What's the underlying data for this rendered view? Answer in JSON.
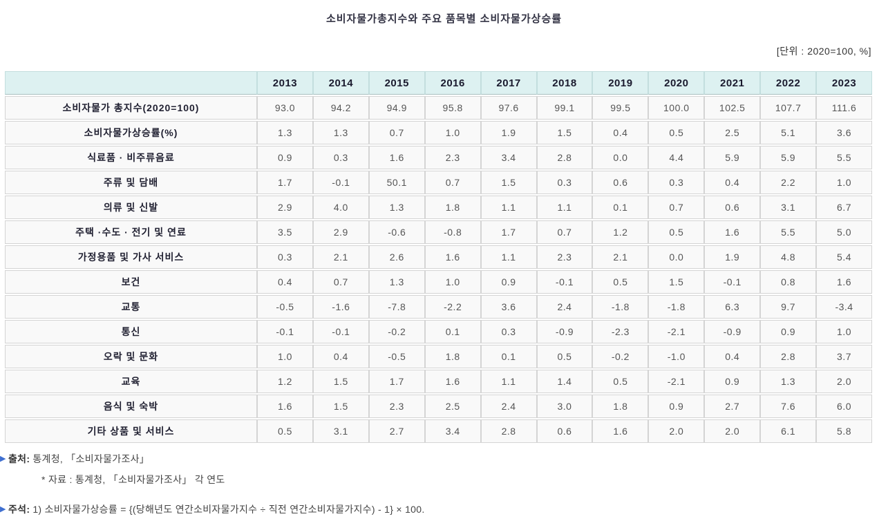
{
  "title": "소비자물가총지수와 주요 품목별 소비자물가상승률",
  "unit_label": "[단위 : 2020=100, %]",
  "icons": {
    "bullet_icon": "▶"
  },
  "colors": {
    "header_bg": "#ddf1f1",
    "row_bg": "#f9f9f9",
    "cell_border": "#d4d4d4",
    "header_border": "#c3dede",
    "bullet_blue": "#3f6fd0"
  },
  "table": {
    "year_columns": [
      "2013",
      "2014",
      "2015",
      "2016",
      "2017",
      "2018",
      "2019",
      "2020",
      "2021",
      "2022",
      "2023"
    ],
    "rows": [
      {
        "label": "소비자물가 총지수(2020=100)",
        "values": [
          "93.0",
          "94.2",
          "94.9",
          "95.8",
          "97.6",
          "99.1",
          "99.5",
          "100.0",
          "102.5",
          "107.7",
          "111.6"
        ]
      },
      {
        "label": "소비자물가상승률(%)",
        "values": [
          "1.3",
          "1.3",
          "0.7",
          "1.0",
          "1.9",
          "1.5",
          "0.4",
          "0.5",
          "2.5",
          "5.1",
          "3.6"
        ]
      },
      {
        "label": "식료품 · 비주류음료",
        "values": [
          "0.9",
          "0.3",
          "1.6",
          "2.3",
          "3.4",
          "2.8",
          "0.0",
          "4.4",
          "5.9",
          "5.9",
          "5.5"
        ]
      },
      {
        "label": "주류 및 담배",
        "values": [
          "1.7",
          "-0.1",
          "50.1",
          "0.7",
          "1.5",
          "0.3",
          "0.6",
          "0.3",
          "0.4",
          "2.2",
          "1.0"
        ]
      },
      {
        "label": "의류 및 신발",
        "values": [
          "2.9",
          "4.0",
          "1.3",
          "1.8",
          "1.1",
          "1.1",
          "0.1",
          "0.7",
          "0.6",
          "3.1",
          "6.7"
        ]
      },
      {
        "label": "주택 ·수도 · 전기 및 연료",
        "values": [
          "3.5",
          "2.9",
          "-0.6",
          "-0.8",
          "1.7",
          "0.7",
          "1.2",
          "0.5",
          "1.6",
          "5.5",
          "5.0"
        ]
      },
      {
        "label": "가정용품 및 가사 서비스",
        "values": [
          "0.3",
          "2.1",
          "2.6",
          "1.6",
          "1.1",
          "2.3",
          "2.1",
          "0.0",
          "1.9",
          "4.8",
          "5.4"
        ]
      },
      {
        "label": "보건",
        "values": [
          "0.4",
          "0.7",
          "1.3",
          "1.0",
          "0.9",
          "-0.1",
          "0.5",
          "1.5",
          "-0.1",
          "0.8",
          "1.6"
        ]
      },
      {
        "label": "교통",
        "values": [
          "-0.5",
          "-1.6",
          "-7.8",
          "-2.2",
          "3.6",
          "2.4",
          "-1.8",
          "-1.8",
          "6.3",
          "9.7",
          "-3.4"
        ]
      },
      {
        "label": "통신",
        "values": [
          "-0.1",
          "-0.1",
          "-0.2",
          "0.1",
          "0.3",
          "-0.9",
          "-2.3",
          "-2.1",
          "-0.9",
          "0.9",
          "1.0"
        ]
      },
      {
        "label": "오락 및 문화",
        "values": [
          "1.0",
          "0.4",
          "-0.5",
          "1.8",
          "0.1",
          "0.5",
          "-0.2",
          "-1.0",
          "0.4",
          "2.8",
          "3.7"
        ]
      },
      {
        "label": "교육",
        "values": [
          "1.2",
          "1.5",
          "1.7",
          "1.6",
          "1.1",
          "1.4",
          "0.5",
          "-2.1",
          "0.9",
          "1.3",
          "2.0"
        ]
      },
      {
        "label": "음식 및 숙박",
        "values": [
          "1.6",
          "1.5",
          "2.3",
          "2.5",
          "2.4",
          "3.0",
          "1.8",
          "0.9",
          "2.7",
          "7.6",
          "6.0"
        ]
      },
      {
        "label": "기타 상품 및 서비스",
        "values": [
          "0.5",
          "3.1",
          "2.7",
          "3.4",
          "2.8",
          "0.6",
          "1.6",
          "2.0",
          "2.0",
          "6.1",
          "5.8"
        ]
      }
    ]
  },
  "footer": {
    "source_label": "출처:",
    "source_text": "통계청, 「소비자물가조사」",
    "source_sub": "* 자료 : 통계청, 「소비자물가조사」 각 연도",
    "note_label": "주석:",
    "note_text": "1) 소비자물가상승률 = {(당해년도 연간소비자물가지수 ÷ 직전 연간소비자물가지수) - 1} × 100."
  }
}
